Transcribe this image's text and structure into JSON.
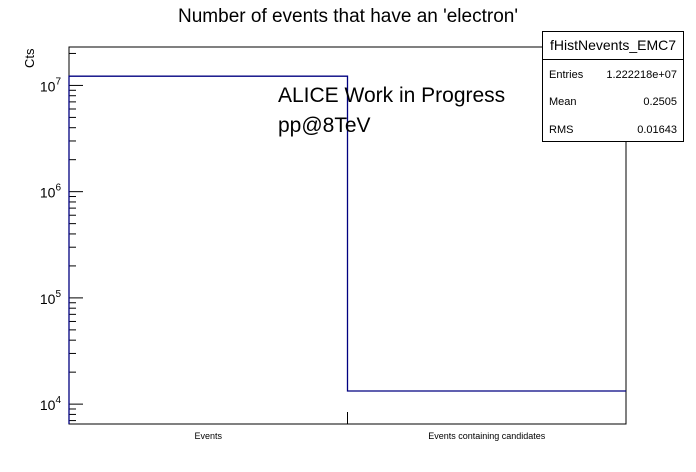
{
  "chart_data": {
    "type": "bar",
    "title": "Number of events that have an 'electron'",
    "xlabel": "",
    "ylabel": "Cts",
    "yscale": "log",
    "ylim": [
      6500,
      23000000
    ],
    "categories": [
      "Events",
      "Events containing candidates"
    ],
    "values": [
      12222180,
      13300
    ],
    "ytick_labels": [
      {
        "base": "10",
        "exp": "4",
        "value": 10000
      },
      {
        "base": "10",
        "exp": "5",
        "value": 100000
      },
      {
        "base": "10",
        "exp": "6",
        "value": 1000000
      },
      {
        "base": "10",
        "exp": "7",
        "value": 10000000
      }
    ],
    "line_color": "#000080",
    "annotations": [
      "ALICE Work in Progress",
      "pp@8TeV"
    ],
    "stats_box": {
      "name": "fHistNevents_EMC7",
      "rows": [
        {
          "label": "Entries",
          "value": "1.222218e+07"
        },
        {
          "label": "Mean",
          "value": "0.2505"
        },
        {
          "label": "RMS",
          "value": "0.01643"
        }
      ]
    }
  }
}
